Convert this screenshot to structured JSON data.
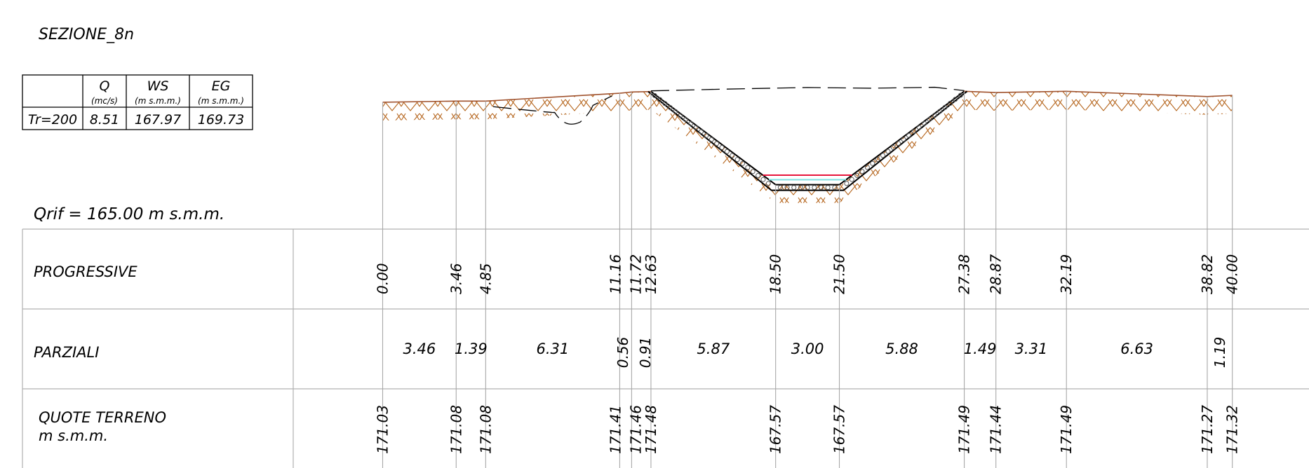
{
  "section_title": "SEZIONE_8n",
  "flow_table": {
    "columns": [
      {
        "label": "Q",
        "unit": "(mc/s)"
      },
      {
        "label": "WS",
        "unit": "(m s.m.m.)"
      },
      {
        "label": "EG",
        "unit": "(m s.m.m.)"
      }
    ],
    "rows": [
      {
        "label": "Tr=200",
        "q": "8.51",
        "ws": "167.97",
        "eg": "169.73"
      }
    ]
  },
  "reference_level": "Qrif = 165.00 m s.m.m.",
  "row_labels": {
    "progressive": "PROGRESSIVE",
    "parziali": "PARZIALI",
    "quote_line1": "QUOTE TERRENO",
    "quote_line2": "m s.m.m."
  },
  "colors": {
    "ground": "#a0522d",
    "hatch": "#b5651d",
    "water_surface_tr200": "#e8173c",
    "low_water": "#7fe0e0",
    "grid": "#b0b0b0"
  },
  "chart_data": {
    "type": "cross-section",
    "datum": 165.0,
    "water_surface": 167.97,
    "energy_grade": 169.73,
    "stations": [
      {
        "progressive": "0.00",
        "quota": "171.03",
        "x": 0.0,
        "z": 171.03
      },
      {
        "progressive": "3.46",
        "quota": "171.08",
        "x": 3.46,
        "z": 171.08
      },
      {
        "progressive": "4.85",
        "quota": "171.08",
        "x": 4.85,
        "z": 171.08
      },
      {
        "progressive": "11.16",
        "quota": "171.41",
        "x": 11.16,
        "z": 171.41
      },
      {
        "progressive": "11.72",
        "quota": "171.46",
        "x": 11.72,
        "z": 171.46
      },
      {
        "progressive": "12.63",
        "quota": "171.48",
        "x": 12.63,
        "z": 171.48
      },
      {
        "progressive": "18.50",
        "quota": "167.57",
        "x": 18.5,
        "z": 167.57
      },
      {
        "progressive": "21.50",
        "quota": "167.57",
        "x": 21.5,
        "z": 167.57
      },
      {
        "progressive": "27.38",
        "quota": "171.49",
        "x": 27.38,
        "z": 171.49
      },
      {
        "progressive": "28.87",
        "quota": "171.44",
        "x": 28.87,
        "z": 171.44
      },
      {
        "progressive": "32.19",
        "quota": "171.49",
        "x": 32.19,
        "z": 171.49
      },
      {
        "progressive": "38.82",
        "quota": "171.27",
        "x": 38.82,
        "z": 171.27
      },
      {
        "progressive": "40.00",
        "quota": "171.32",
        "x": 40.0,
        "z": 171.32
      }
    ],
    "partials": [
      "3.46",
      "1.39",
      "6.31",
      "0.56",
      "0.91",
      "5.87",
      "3.00",
      "5.88",
      "1.49",
      "3.31",
      "6.63",
      "1.19"
    ]
  }
}
